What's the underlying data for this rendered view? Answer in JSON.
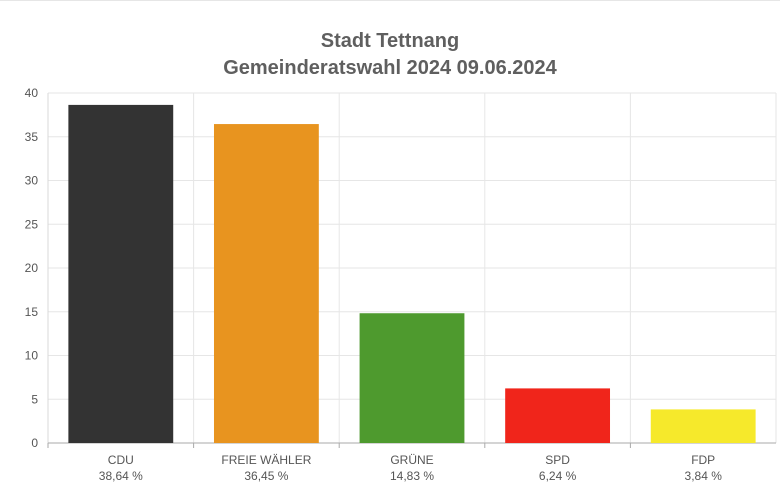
{
  "chart_data": {
    "type": "bar",
    "title": "Stadt Tettnang",
    "subtitle": "Gemeinderatswahl 2024 09.06.2024",
    "categories": [
      "CDU",
      "FREIE WÄHLER",
      "GRÜNE",
      "SPD",
      "FDP"
    ],
    "value_labels": [
      "38,64 %",
      "36,45 %",
      "14,83 %",
      "6,24 %",
      "3,84 %"
    ],
    "values": [
      38.64,
      36.45,
      14.83,
      6.24,
      3.84
    ],
    "colors": [
      "#333333",
      "#e8941f",
      "#4e9a2e",
      "#f0251b",
      "#f6e92b"
    ],
    "yticks": [
      "0",
      "5",
      "10",
      "15",
      "20",
      "25",
      "30",
      "35",
      "40"
    ],
    "ylim": [
      0,
      40
    ],
    "xlabel": "",
    "ylabel": "",
    "grid": true
  }
}
